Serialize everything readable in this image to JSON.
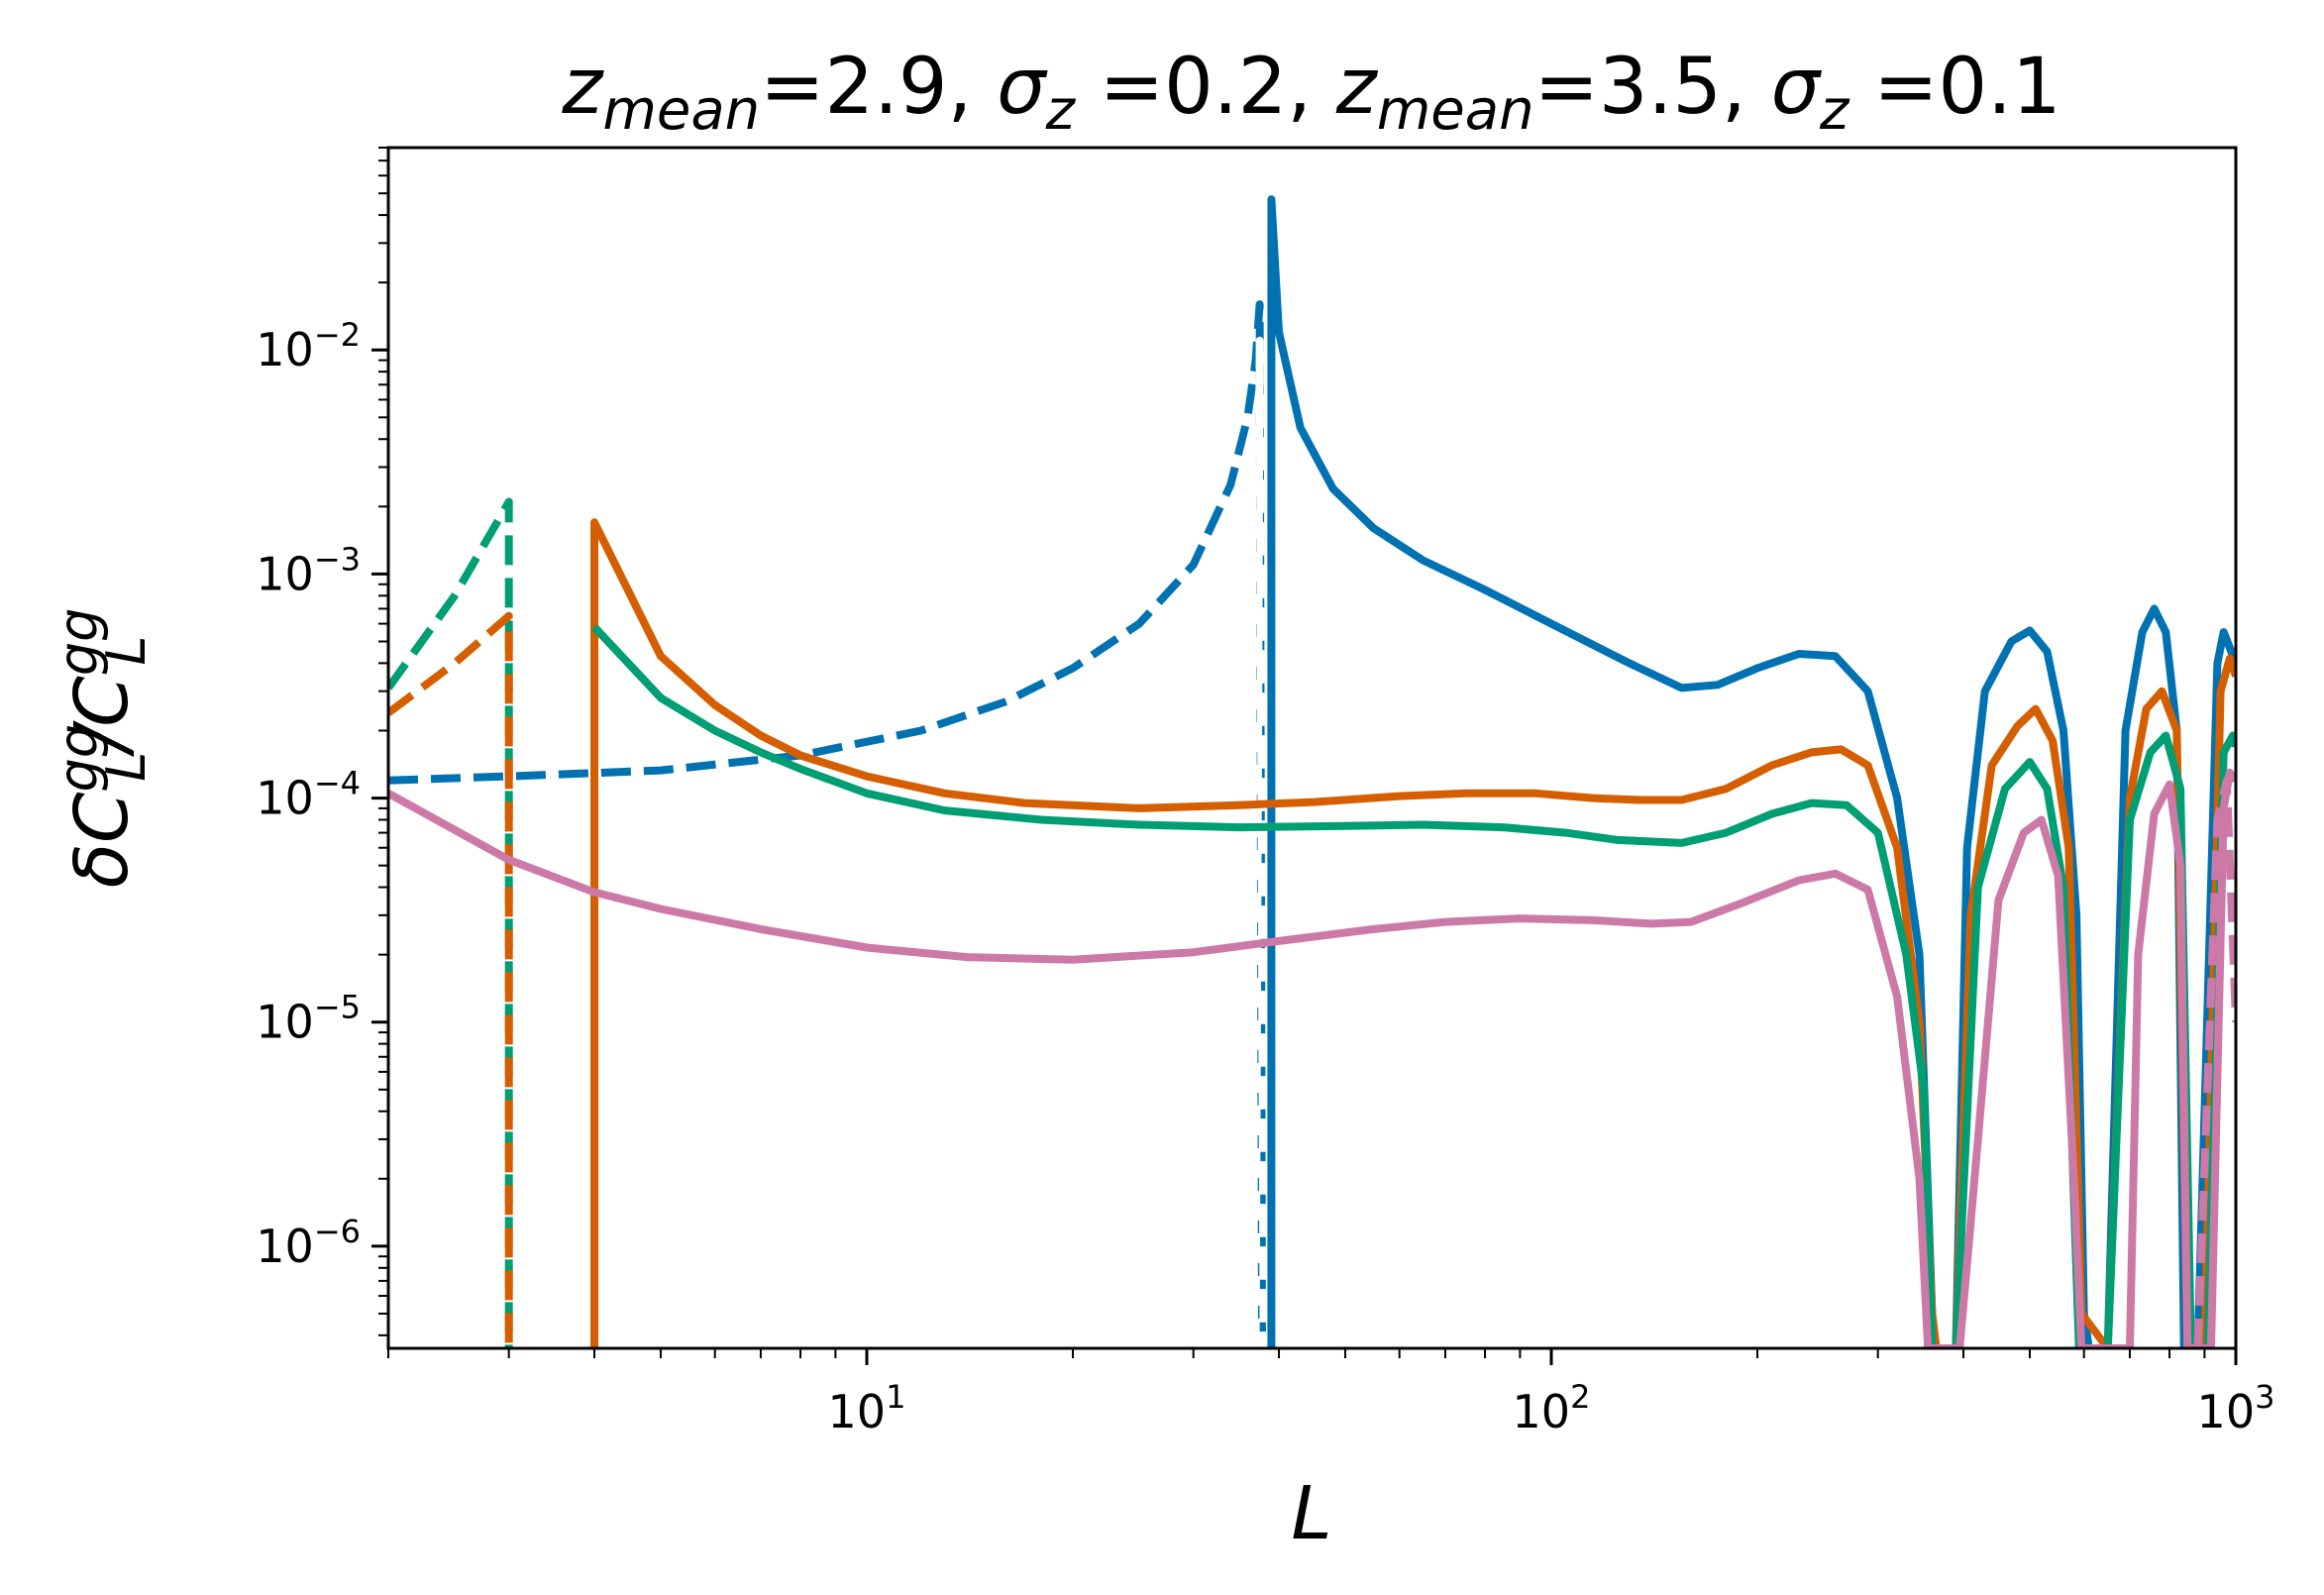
{
  "chart_data": {
    "type": "line",
    "title_parts": [
      {
        "t": "z",
        "style": "italic"
      },
      {
        "t": "mean",
        "style": "sub-italic"
      },
      {
        "t": "=2.9, ",
        "style": "normal"
      },
      {
        "t": "σ",
        "style": "italic"
      },
      {
        "t": "z",
        "style": "sub-italic"
      },
      {
        "t": " =0.2, ",
        "style": "normal"
      },
      {
        "t": "z",
        "style": "italic"
      },
      {
        "t": "mean",
        "style": "sub-italic"
      },
      {
        "t": "=3.5, ",
        "style": "normal"
      },
      {
        "t": "σ",
        "style": "italic"
      },
      {
        "t": "z",
        "style": "sub-italic"
      },
      {
        "t": " =0.1",
        "style": "normal"
      }
    ],
    "xlabel": "L",
    "ylabel_parts": [
      {
        "t": "δC",
        "style": "italic"
      },
      {
        "t": "gg",
        "style": "sup"
      },
      {
        "t": "L",
        "style": "sub"
      },
      {
        "t": "/C",
        "style": "italic"
      },
      {
        "t": "gg",
        "style": "sup"
      },
      {
        "t": "L",
        "style": "sub"
      }
    ],
    "xscale": "log",
    "yscale": "log",
    "xlim": [
      2,
      1000
    ],
    "ylim": [
      3.5e-07,
      0.08
    ],
    "x_ticks": [
      {
        "value": 10,
        "base": "10",
        "exp": "1"
      },
      {
        "value": 100,
        "base": "10",
        "exp": "2"
      },
      {
        "value": 1000,
        "base": "10",
        "exp": "3"
      }
    ],
    "y_ticks": [
      {
        "value": 1e-06,
        "base": "10",
        "exp": "−6"
      },
      {
        "value": 1e-05,
        "base": "10",
        "exp": "−5"
      },
      {
        "value": 0.0001,
        "base": "10",
        "exp": "−4"
      },
      {
        "value": 0.001,
        "base": "10",
        "exp": "−3"
      },
      {
        "value": 0.01,
        "base": "10",
        "exp": "−2"
      }
    ],
    "legend": "none",
    "grid": false,
    "series": [
      {
        "name": "blue-dashed",
        "color": "#0072b2",
        "dash": true,
        "points": [
          [
            2,
            0.00012
          ],
          [
            3,
            0.000125
          ],
          [
            5,
            0.000133
          ],
          [
            8,
            0.000155
          ],
          [
            12,
            0.0002
          ],
          [
            16,
            0.00027
          ],
          [
            20,
            0.00038
          ],
          [
            25,
            0.0006
          ],
          [
            30,
            0.0011
          ],
          [
            34,
            0.0025
          ],
          [
            36,
            0.005
          ],
          [
            37,
            0.009
          ],
          [
            37.5,
            0.016
          ],
          [
            37.8,
            3.5e-07
          ]
        ]
      },
      {
        "name": "green-dashed",
        "color": "#009e73",
        "dash": true,
        "points": [
          [
            2,
            0.00031
          ],
          [
            2.5,
            0.0008
          ],
          [
            3,
            0.0021
          ],
          [
            3,
            3.5e-07
          ]
        ]
      },
      {
        "name": "orange-dashed",
        "color": "#d55e00",
        "dash": true,
        "points": [
          [
            2,
            0.00024
          ],
          [
            2.5,
            0.0004
          ],
          [
            3,
            0.00065
          ],
          [
            3,
            3.5e-07
          ]
        ]
      },
      {
        "name": "white-dashed",
        "color": "#ffffff",
        "dash": true,
        "points": [
          [
            37,
            3.5e-07
          ],
          [
            37.5,
            0.011
          ],
          [
            38,
            3.5e-07
          ]
        ]
      },
      {
        "name": "blue-solid",
        "color": "#0072b2",
        "dash": false,
        "points": [
          [
            39,
            3.5e-07
          ],
          [
            39,
            0.047
          ],
          [
            40,
            0.012
          ],
          [
            43,
            0.0045
          ],
          [
            48,
            0.0024
          ],
          [
            55,
            0.0016
          ],
          [
            65,
            0.00115
          ],
          [
            80,
            0.00085
          ],
          [
            100,
            0.0006
          ],
          [
            130,
            0.0004
          ],
          [
            155,
            0.00031
          ],
          [
            175,
            0.00032
          ],
          [
            200,
            0.00038
          ],
          [
            230,
            0.00044
          ],
          [
            260,
            0.00043
          ],
          [
            290,
            0.0003
          ],
          [
            320,
            0.0001
          ],
          [
            345,
            2e-05
          ],
          [
            360,
            5e-07
          ],
          [
            365,
            3.5e-07
          ],
          [
            390,
            3.5e-07
          ],
          [
            405,
            6e-05
          ],
          [
            430,
            0.0003
          ],
          [
            470,
            0.0005
          ],
          [
            500,
            0.00056
          ],
          [
            530,
            0.00045
          ],
          [
            560,
            0.0002
          ],
          [
            585,
            3e-05
          ],
          [
            600,
            5e-07
          ],
          [
            610,
            3.5e-07
          ],
          [
            650,
            3.5e-07
          ],
          [
            690,
            0.0002
          ],
          [
            730,
            0.00055
          ],
          [
            760,
            0.0007
          ],
          [
            790,
            0.00055
          ],
          [
            820,
            0.0002
          ],
          [
            840,
            3.5e-07
          ],
          [
            880,
            3.5e-07
          ],
          [
            940,
            0.0004
          ],
          [
            960,
            0.00055
          ],
          [
            1000,
            0.0004
          ]
        ]
      },
      {
        "name": "orange-solid",
        "color": "#d55e00",
        "dash": false,
        "points": [
          [
            4,
            3.5e-07
          ],
          [
            4,
            0.0017
          ],
          [
            5,
            0.00043
          ],
          [
            6,
            0.00026
          ],
          [
            7,
            0.00019
          ],
          [
            8,
            0.000155
          ],
          [
            10,
            0.000125
          ],
          [
            13,
            0.000105
          ],
          [
            17,
            9.5e-05
          ],
          [
            25,
            9e-05
          ],
          [
            35,
            9.3e-05
          ],
          [
            45,
            9.6e-05
          ],
          [
            60,
            0.000102
          ],
          [
            75,
            0.000105
          ],
          [
            95,
            0.000105
          ],
          [
            115,
            0.0001
          ],
          [
            135,
            9.8e-05
          ],
          [
            155,
            9.8e-05
          ],
          [
            180,
            0.00011
          ],
          [
            210,
            0.00014
          ],
          [
            240,
            0.00016
          ],
          [
            265,
            0.000165
          ],
          [
            290,
            0.00014
          ],
          [
            320,
            6e-05
          ],
          [
            345,
            1e-05
          ],
          [
            360,
            5e-07
          ],
          [
            365,
            3.5e-07
          ],
          [
            390,
            3.5e-07
          ],
          [
            410,
            3e-05
          ],
          [
            440,
            0.00014
          ],
          [
            480,
            0.00021
          ],
          [
            510,
            0.00025
          ],
          [
            540,
            0.00018
          ],
          [
            570,
            6e-05
          ],
          [
            595,
            5e-07
          ],
          [
            650,
            3.5e-07
          ],
          [
            700,
            0.0001
          ],
          [
            740,
            0.00025
          ],
          [
            780,
            0.0003
          ],
          [
            820,
            0.0002
          ],
          [
            850,
            3.5e-07
          ],
          [
            900,
            3.5e-07
          ],
          [
            950,
            0.0003
          ],
          [
            980,
            0.00042
          ],
          [
            1000,
            0.00035
          ]
        ]
      },
      {
        "name": "green-solid",
        "color": "#009e73",
        "dash": false,
        "points": [
          [
            4,
            0.00058
          ],
          [
            5,
            0.00028
          ],
          [
            6,
            0.0002
          ],
          [
            7,
            0.00016
          ],
          [
            8,
            0.000135
          ],
          [
            10,
            0.000105
          ],
          [
            13,
            8.8e-05
          ],
          [
            18,
            8e-05
          ],
          [
            25,
            7.6e-05
          ],
          [
            35,
            7.4e-05
          ],
          [
            50,
            7.5e-05
          ],
          [
            65,
            7.6e-05
          ],
          [
            85,
            7.4e-05
          ],
          [
            105,
            7e-05
          ],
          [
            125,
            6.5e-05
          ],
          [
            155,
            6.3e-05
          ],
          [
            180,
            7e-05
          ],
          [
            210,
            8.5e-05
          ],
          [
            240,
            9.5e-05
          ],
          [
            270,
            9.3e-05
          ],
          [
            300,
            7e-05
          ],
          [
            330,
            2e-05
          ],
          [
            350,
            5e-06
          ],
          [
            360,
            3.5e-07
          ],
          [
            390,
            3.5e-07
          ],
          [
            420,
            4e-05
          ],
          [
            460,
            0.00011
          ],
          [
            500,
            0.000145
          ],
          [
            530,
            0.00011
          ],
          [
            560,
            4e-05
          ],
          [
            590,
            3.5e-07
          ],
          [
            650,
            3.5e-07
          ],
          [
            700,
            8e-05
          ],
          [
            750,
            0.00016
          ],
          [
            790,
            0.00019
          ],
          [
            830,
            0.00011
          ],
          [
            860,
            3.5e-07
          ],
          [
            910,
            3.5e-07
          ],
          [
            960,
            0.00016
          ],
          [
            990,
            0.00019
          ],
          [
            1000,
            0.00017
          ]
        ]
      },
      {
        "name": "pink-solid",
        "color": "#cc79a7",
        "dash": false,
        "points": [
          [
            2,
            0.000105
          ],
          [
            3,
            5.3e-05
          ],
          [
            4,
            3.8e-05
          ],
          [
            5,
            3.2e-05
          ],
          [
            7,
            2.6e-05
          ],
          [
            10,
            2.15e-05
          ],
          [
            14,
            1.95e-05
          ],
          [
            20,
            1.9e-05
          ],
          [
            30,
            2.05e-05
          ],
          [
            40,
            2.3e-05
          ],
          [
            55,
            2.6e-05
          ],
          [
            70,
            2.8e-05
          ],
          [
            90,
            2.9e-05
          ],
          [
            115,
            2.85e-05
          ],
          [
            140,
            2.75e-05
          ],
          [
            160,
            2.8e-05
          ],
          [
            190,
            3.4e-05
          ],
          [
            230,
            4.3e-05
          ],
          [
            260,
            4.6e-05
          ],
          [
            290,
            3.9e-05
          ],
          [
            320,
            1.3e-05
          ],
          [
            345,
            2e-06
          ],
          [
            355,
            3.5e-07
          ],
          [
            395,
            3.5e-07
          ],
          [
            420,
            3e-06
          ],
          [
            450,
            3.5e-05
          ],
          [
            490,
            7e-05
          ],
          [
            520,
            8e-05
          ],
          [
            550,
            4.5e-05
          ],
          [
            580,
            2e-06
          ],
          [
            595,
            3.5e-07
          ],
          [
            700,
            3.5e-07
          ],
          [
            720,
            2e-05
          ],
          [
            760,
            8.5e-05
          ],
          [
            800,
            0.000115
          ],
          [
            830,
            5e-05
          ],
          [
            850,
            3.5e-07
          ],
          [
            920,
            3.5e-07
          ],
          [
            960,
            9e-05
          ],
          [
            980,
            0.00013
          ],
          [
            1000,
            0.00012
          ]
        ]
      },
      {
        "name": "pink-dashed",
        "color": "#cc79a7",
        "dash": true,
        "points": [
          [
            880,
            3.5e-07
          ],
          [
            940,
            8e-05
          ],
          [
            970,
            0.00012
          ],
          [
            1000,
            1e-05
          ]
        ]
      }
    ]
  }
}
